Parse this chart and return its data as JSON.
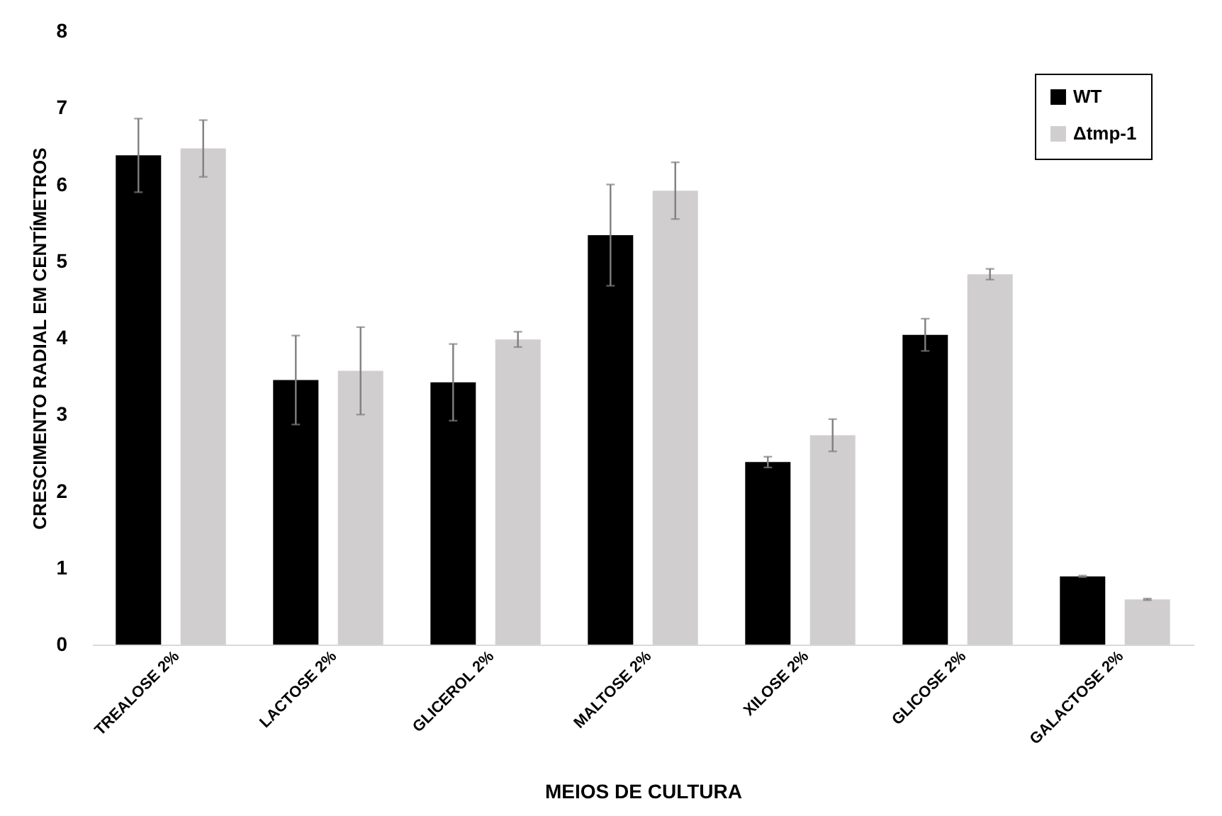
{
  "chart_data": {
    "type": "bar",
    "xlabel": "MEIOS DE CULTURA",
    "ylabel": "CRESCIMENTO RADIAL EM CENTÍMETROS",
    "categories": [
      "TREALOSE 2%",
      "LACTOSE 2%",
      "GLICEROL 2%",
      "MALTOSE 2%",
      "XILOSE 2%",
      "GLICOSE 2%",
      "GALACTOSE 2%"
    ],
    "series": [
      {
        "name": "WT",
        "color": "#000000",
        "values": [
          6.38,
          3.45,
          3.42,
          5.34,
          2.38,
          4.04,
          0.89
        ],
        "errors": [
          0.48,
          0.58,
          0.5,
          0.66,
          0.07,
          0.21,
          0.01
        ]
      },
      {
        "name": "Δtmp-1",
        "color": "#d0cece",
        "values": [
          6.47,
          3.57,
          3.98,
          5.92,
          2.73,
          4.83,
          0.59
        ],
        "errors": [
          0.37,
          0.57,
          0.1,
          0.37,
          0.21,
          0.07,
          0.01
        ]
      }
    ],
    "ylim": [
      0,
      8
    ],
    "yticks": [
      0,
      1,
      2,
      3,
      4,
      5,
      6,
      7,
      8
    ],
    "grid": false,
    "legend": "top right"
  }
}
